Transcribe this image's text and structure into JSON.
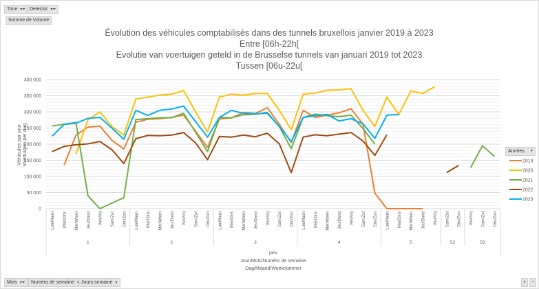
{
  "pivot": {
    "top_fields": [
      {
        "label": "Time",
        "icon": "filter-icon"
      },
      {
        "label": "Detector",
        "icon": "filter-icon"
      }
    ],
    "value_field": "Somme de Volume",
    "bottom_fields": [
      {
        "label": "Mois",
        "icon": "filter-icon"
      },
      {
        "label": "Numéro de semaine",
        "icon": "dropdown-icon"
      },
      {
        "label": "Jours semaine",
        "icon": "dropdown-icon"
      }
    ],
    "legend_field": "Années",
    "zoom_plus": "+",
    "zoom_minus": "−"
  },
  "chart_data": {
    "type": "line",
    "title": [
      "Évolution des véhicules comptabilisés dans des tunnels bruxellois janvier 2019 à 2023",
      "Entre [06h-22h[",
      "Evolutie van voertuigen geteld in de Brusselse tunnels van januari 2019 tot 2023",
      "Tussen [06u-22u["
    ],
    "ylabel": [
      "Véhicules par jour",
      "Voertuigen per dag"
    ],
    "xlabel": [
      "Jour/Mois/Numéro de semaine",
      "Dag/Maand/Weeknummer"
    ],
    "month": "janv",
    "ylim": [
      0,
      400000
    ],
    "yticks": [
      0,
      50000,
      100000,
      150000,
      200000,
      250000,
      300000,
      350000,
      400000
    ],
    "ytick_labels": [
      "0",
      "50 000",
      "100 000",
      "150 000",
      "200 000",
      "250 000",
      "300 000",
      "350 000",
      "400 000"
    ],
    "grid": true,
    "legend_placement": "right",
    "weeks": [
      {
        "week": "1",
        "days": [
          "Lun/Maan",
          "Mar/Dins",
          "Mer/Woen",
          "Jeu/Dond",
          "Ven/Vrij",
          "Sam/Zat",
          "Dim/Zon"
        ]
      },
      {
        "week": "2",
        "days": [
          "Lun/Maan",
          "Mar/Dins",
          "Mer/Woen",
          "Jeu/Dond",
          "Ven/Vrij",
          "Sam/Zat",
          "Dim/Zon"
        ]
      },
      {
        "week": "3",
        "days": [
          "Lun/Maan",
          "Mar/Dins",
          "Mer/Woen",
          "Jeu/Dond",
          "Ven/Vrij",
          "Sam/Zat",
          "Dim/Zon"
        ]
      },
      {
        "week": "4",
        "days": [
          "Lun/Maan",
          "Mar/Dins",
          "Mer/Woen",
          "Jeu/Dond",
          "Ven/Vrij",
          "Sam/Zat",
          "Dim/Zon"
        ]
      },
      {
        "week": "5",
        "days": [
          "Lun/Maan",
          "Mar/Dins",
          "Mer/Woen",
          "Jeu/Dond",
          "Ven/Vrij"
        ]
      },
      {
        "week": "52",
        "days": [
          "Sam/Zat",
          "Dim/Zon"
        ]
      },
      {
        "week": "53",
        "days": [
          "Ven/Vrij",
          "Sam/Zat",
          "Dim/Zon"
        ]
      }
    ],
    "series": [
      {
        "name": "2019",
        "color": "#ED7D31",
        "values": [
          null,
          135000,
          228000,
          253000,
          256000,
          212000,
          185000,
          268000,
          277000,
          279000,
          283000,
          290000,
          240000,
          190000,
          278000,
          281000,
          298000,
          295000,
          313000,
          262000,
          205000,
          305000,
          283000,
          290000,
          297000,
          310000,
          262000,
          48000,
          0,
          0,
          0,
          0,
          null,
          null,
          null,
          null,
          null,
          null
        ]
      },
      {
        "name": "2020",
        "color": "#FFC000",
        "values": [
          null,
          null,
          170000,
          275000,
          300000,
          255000,
          228000,
          340000,
          346000,
          352000,
          355000,
          366000,
          300000,
          238000,
          346000,
          355000,
          352000,
          357000,
          357000,
          305000,
          245000,
          355000,
          358000,
          367000,
          368000,
          372000,
          305000,
          255000,
          346000,
          292000,
          365000,
          357000,
          378000,
          null,
          null,
          null,
          null,
          null
        ]
      },
      {
        "name": "2021",
        "color": "#70AD47",
        "values": [
          256000,
          262000,
          267000,
          40000,
          0,
          17000,
          34000,
          276000,
          279000,
          282000,
          282000,
          296000,
          237000,
          177000,
          283000,
          282000,
          291000,
          293000,
          298000,
          255000,
          186000,
          283000,
          293000,
          288000,
          285000,
          290000,
          248000,
          200000,
          null,
          null,
          null,
          null,
          null,
          null,
          null,
          127000,
          195000,
          162000
        ]
      },
      {
        "name": "2022",
        "color": "#9E480E",
        "values": [
          177000,
          193000,
          198000,
          201000,
          208000,
          183000,
          140000,
          217000,
          227000,
          226000,
          228000,
          236000,
          204000,
          152000,
          224000,
          222000,
          228000,
          223000,
          234000,
          201000,
          112000,
          222000,
          229000,
          226000,
          231000,
          236000,
          210000,
          165000,
          229000,
          null,
          null,
          null,
          null,
          112000,
          134000,
          null,
          null,
          null
        ]
      },
      {
        "name": "2023",
        "color": "#00B0F0",
        "values": [
          225000,
          261000,
          265000,
          280000,
          283000,
          250000,
          215000,
          305000,
          289000,
          305000,
          309000,
          318000,
          270000,
          222000,
          283000,
          305000,
          295000,
          294000,
          296000,
          255000,
          208000,
          283000,
          288000,
          292000,
          272000,
          279000,
          263000,
          218000,
          290000,
          292000,
          null,
          null,
          null,
          null,
          null,
          null,
          null,
          null
        ]
      }
    ]
  }
}
